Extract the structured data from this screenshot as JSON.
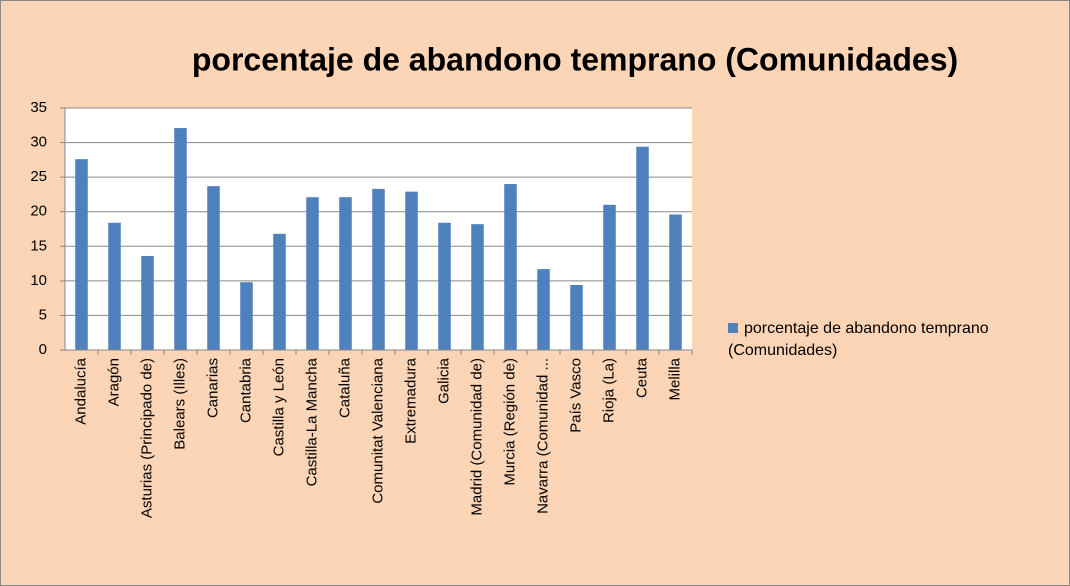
{
  "chart_data": {
    "type": "bar",
    "title": "porcentaje de abandono temprano (Comunidades)",
    "categories": [
      "Andalucía",
      "Aragón",
      "Asturias (Principado de)",
      "Balears (Illes)",
      "Canarias",
      "Cantabria",
      "Castilla y León",
      "Castilla-La Mancha",
      "Cataluña",
      "Comunitat Valenciana",
      "Extremadura",
      "Galicia",
      "Madrid (Comunidad de)",
      "Murcia (Región de)",
      "Navarra (Comunidad ...",
      "País Vasco",
      "Rioja (La)",
      "Ceuta",
      "Melilla"
    ],
    "series": [
      {
        "name": "porcentaje de abandono temprano (Comunidades)",
        "color": "#4f81bd",
        "values": [
          27.6,
          18.4,
          13.6,
          32.1,
          23.7,
          9.8,
          16.8,
          22.1,
          22.1,
          23.3,
          22.9,
          18.4,
          18.2,
          24.0,
          11.7,
          9.4,
          21.0,
          29.4,
          19.6
        ]
      }
    ],
    "ylim": [
      0,
      35
    ],
    "yticks": [
      0,
      5,
      10,
      15,
      20,
      25,
      30,
      35
    ],
    "grid": true,
    "legend": "right"
  }
}
